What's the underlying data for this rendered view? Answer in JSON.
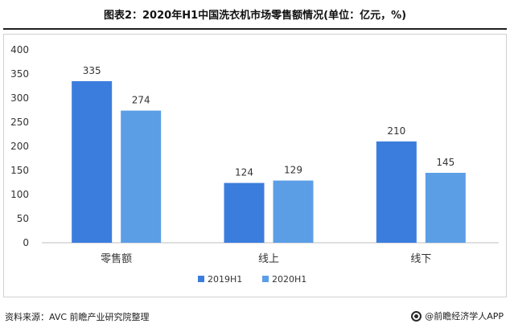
{
  "title": "图表2：2020年H1中国洗衣机市场零售额情况(单位：亿元，%)",
  "source": "资料来源：AVC 前瞻产业研究院整理",
  "brand": "@前瞻经济学人APP",
  "colors": {
    "series_2019": "#3b7ddd",
    "series_2020": "#5b9ee6",
    "axis": "#bfbfbf",
    "text": "#333333"
  },
  "chart_data": {
    "type": "bar",
    "title": "图表2：2020年H1中国洗衣机市场零售额情况(单位：亿元，%)",
    "categories": [
      "零售额",
      "线上",
      "线下"
    ],
    "series": [
      {
        "name": "2019H1",
        "values": [
          335,
          124,
          210
        ]
      },
      {
        "name": "2020H1",
        "values": [
          274,
          129,
          145
        ]
      }
    ],
    "ylim": [
      0,
      400
    ],
    "yticks": [
      0,
      50,
      100,
      150,
      200,
      250,
      300,
      350,
      400
    ],
    "grid": false,
    "legend": "bottom-center",
    "data_labels": true
  }
}
